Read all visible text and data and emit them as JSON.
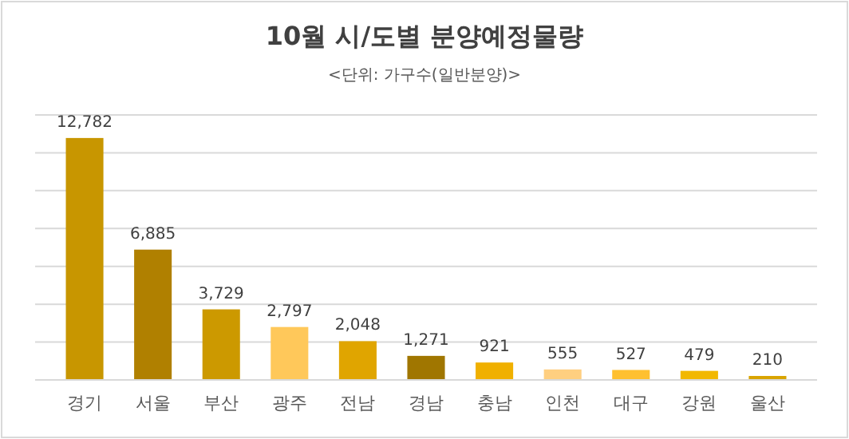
{
  "chart_data": {
    "type": "bar",
    "title": "10월 시/도별 분양예정물량",
    "subtitle": "<단위: 가구수(일반분양)>",
    "categories": [
      "경기",
      "서울",
      "부산",
      "광주",
      "전남",
      "경남",
      "충남",
      "인천",
      "대구",
      "강원",
      "울산"
    ],
    "values": [
      12782,
      6885,
      3729,
      2797,
      2048,
      1271,
      921,
      555,
      527,
      479,
      210
    ],
    "colors": [
      "#c89600",
      "#b08000",
      "#cc9900",
      "#ffc85a",
      "#e0a500",
      "#a07600",
      "#f0b000",
      "#ffcf80",
      "#ffc030",
      "#f2b800",
      "#d9a400"
    ],
    "ylim": [
      0,
      14000
    ],
    "yticks": [
      {
        "value": 0,
        "label": null
      },
      {
        "value": 2000,
        "label": null
      },
      {
        "value": 4000,
        "label": null
      },
      {
        "value": 6000,
        "label": null
      },
      {
        "value": 8000,
        "label": null
      },
      {
        "value": 10000,
        "label": null
      },
      {
        "value": 12000,
        "label": null
      },
      {
        "value": 14000,
        "label": null
      }
    ],
    "value_labels": [
      "12,782",
      "6,885",
      "3,729",
      "2,797",
      "2,048",
      "1,271",
      "921",
      "555",
      "527",
      "479",
      "210"
    ],
    "grid": "y",
    "tick_labels": "x"
  }
}
